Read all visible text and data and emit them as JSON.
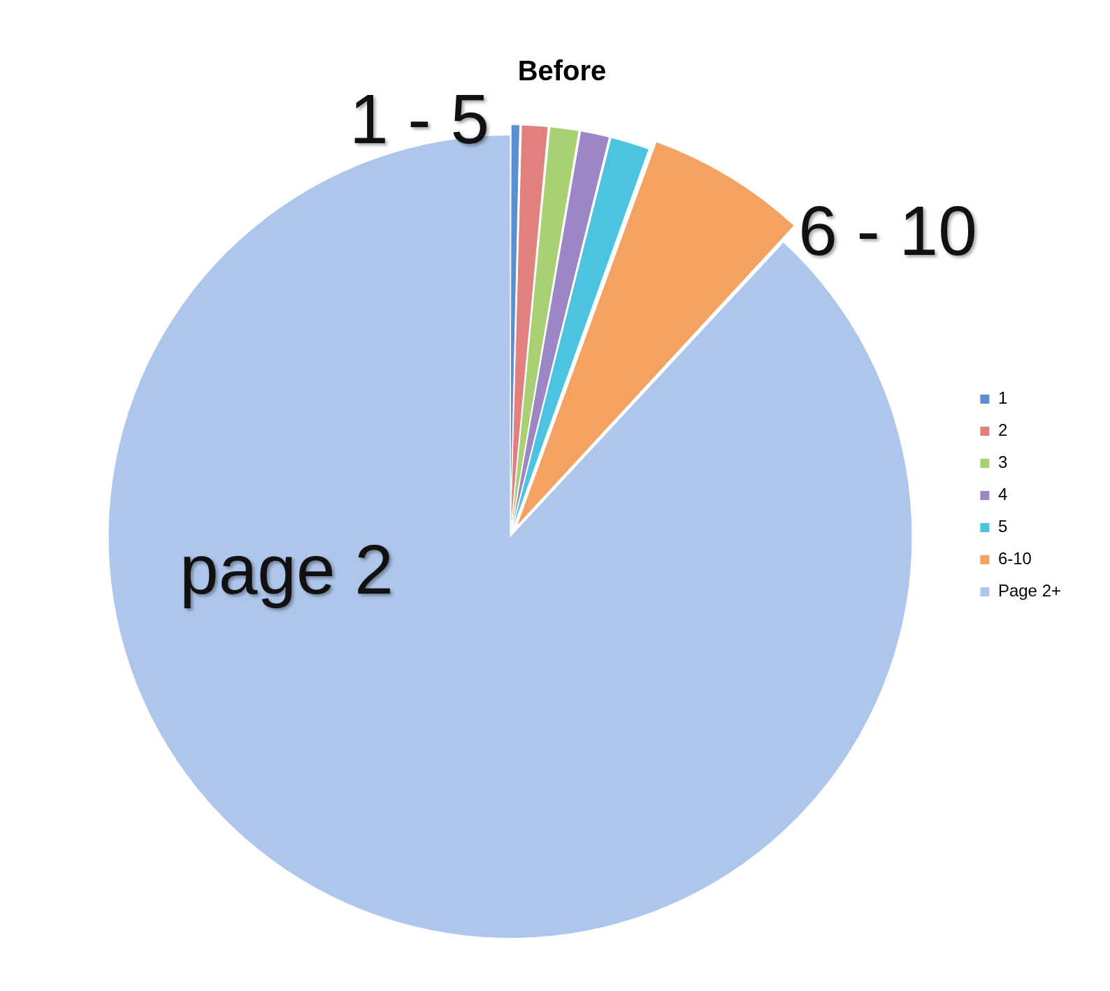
{
  "chart_data": {
    "type": "pie",
    "title": "Before",
    "categories": [
      "1",
      "2",
      "3",
      "4",
      "5",
      "6-10",
      "Page 2+"
    ],
    "values": [
      0.4,
      1.1,
      1.2,
      1.2,
      1.6,
      6.4,
      88.1
    ],
    "colors": [
      "#5a8fd0",
      "#e27f7f",
      "#a9d073",
      "#9d86c6",
      "#4cc3e0",
      "#f4a262",
      "#aec6ec"
    ],
    "legend": "right",
    "annotations": [
      "1 - 5",
      "6 - 10",
      "page 2"
    ]
  }
}
